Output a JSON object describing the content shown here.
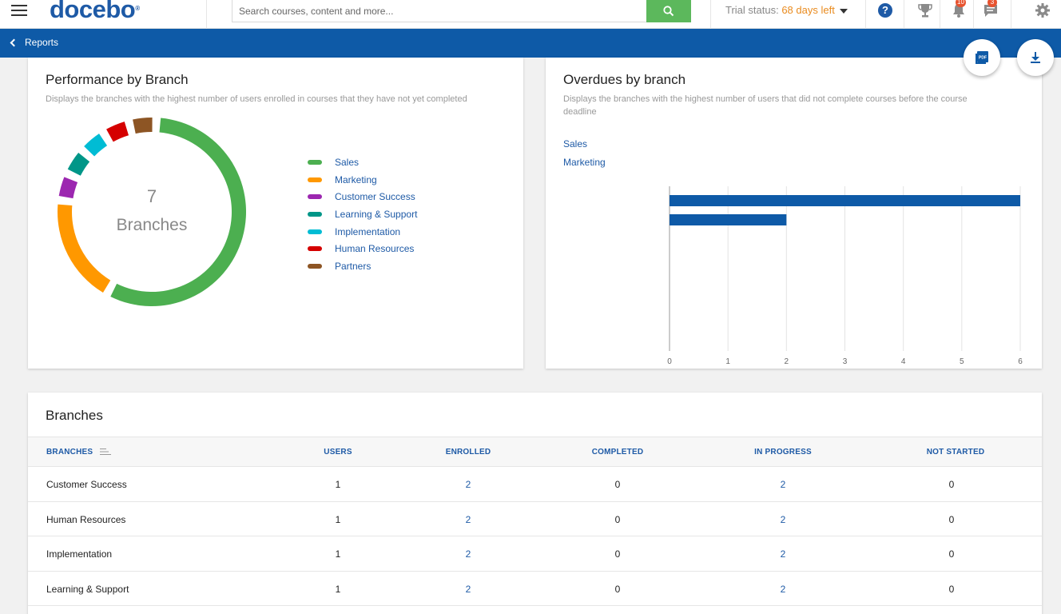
{
  "header": {
    "logo": "docebo",
    "logo_mark": "®",
    "search_placeholder": "Search courses, content and more...",
    "trial_prefix": "Trial status:",
    "trial_days": "68 days left",
    "help": "?",
    "notifications_count": "10",
    "messages_count": "3",
    "icons": [
      "menu-icon",
      "search-icon",
      "help-icon",
      "trophy-icon",
      "bell-icon",
      "chat-icon",
      "gear-icon"
    ]
  },
  "subheader": {
    "back_label": "Reports"
  },
  "performance": {
    "title": "Performance by Branch",
    "description": "Displays the branches with the highest number of users enrolled in courses that they have not yet completed",
    "center_count": "7",
    "center_label": "Branches",
    "legend": [
      {
        "label": "Sales",
        "color": "#4caf50"
      },
      {
        "label": "Marketing",
        "color": "#ff9800"
      },
      {
        "label": "Customer Success",
        "color": "#9c27b0"
      },
      {
        "label": "Learning & Support",
        "color": "#009688"
      },
      {
        "label": "Implementation",
        "color": "#00bcd4"
      },
      {
        "label": "Human Resources",
        "color": "#d50000"
      },
      {
        "label": "Partners",
        "color": "#8d5524"
      }
    ]
  },
  "chart_data": [
    {
      "type": "pie",
      "categories": [
        "Sales",
        "Marketing",
        "Customer Success",
        "Learning & Support",
        "Implementation",
        "Human Resources",
        "Partners"
      ],
      "values": [
        12,
        4,
        1,
        1,
        1,
        1,
        1
      ],
      "colors": [
        "#4caf50",
        "#ff9800",
        "#9c27b0",
        "#009688",
        "#00bcd4",
        "#d50000",
        "#8d5524"
      ]
    },
    {
      "type": "bar",
      "orientation": "horizontal",
      "categories": [
        "Sales",
        "Marketing"
      ],
      "values": [
        6,
        2
      ],
      "xlim": [
        0,
        6
      ],
      "xticks": [
        "0",
        "1",
        "2",
        "3",
        "4",
        "5",
        "6"
      ],
      "color": "#0e5aa7",
      "grid": true
    }
  ],
  "overdues": {
    "title": "Overdues by branch",
    "description": "Displays the branches with the highest number of users that did not complete courses before the course deadline",
    "legend": [
      "Sales",
      "Marketing"
    ]
  },
  "branches_table": {
    "title": "Branches",
    "columns": [
      "BRANCHES",
      "USERS",
      "ENROLLED",
      "COMPLETED",
      "IN PROGRESS",
      "NOT STARTED"
    ],
    "rows": [
      [
        "Customer Success",
        "1",
        "2",
        "0",
        "2",
        "0"
      ],
      [
        "Human Resources",
        "1",
        "2",
        "0",
        "2",
        "0"
      ],
      [
        "Implementation",
        "1",
        "2",
        "0",
        "2",
        "0"
      ],
      [
        "Learning & Support",
        "1",
        "2",
        "0",
        "2",
        "0"
      ]
    ]
  }
}
